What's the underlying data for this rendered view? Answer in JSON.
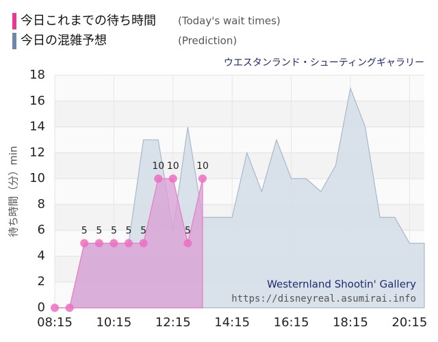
{
  "chart_data": {
    "type": "area",
    "subtitle": "ウエスタンランド・シューティングギャラリー",
    "y_label": "待ち時間（分）min",
    "watermark": [
      "Westernland Shootin' Gallery",
      "https://disneyreal.asumirai.info"
    ],
    "xlim": [
      "08:15",
      "20:45"
    ],
    "xticks": [
      "08:15",
      "10:15",
      "12:15",
      "14:15",
      "16:15",
      "18:15",
      "20:15"
    ],
    "ylim": [
      0,
      18
    ],
    "yticks": [
      0,
      2,
      4,
      6,
      8,
      10,
      12,
      14,
      16,
      18
    ],
    "grid": true,
    "series": [
      {
        "name": "今日の混雑予想",
        "legend_note": "(Prediction)",
        "color": "#6f86a8",
        "x": [
          "08:15",
          "08:45",
          "09:15",
          "09:45",
          "10:15",
          "10:45",
          "11:15",
          "11:45",
          "12:15",
          "12:45",
          "13:15",
          "13:45",
          "14:15",
          "14:45",
          "15:15",
          "15:45",
          "16:15",
          "16:45",
          "17:15",
          "17:45",
          "18:15",
          "18:45",
          "19:15",
          "19:45",
          "20:15",
          "20:45"
        ],
        "values": [
          0,
          0,
          5,
          5,
          5,
          5,
          13,
          13,
          6,
          14,
          7,
          7,
          7,
          12,
          9,
          13,
          10,
          10,
          9,
          11,
          17,
          14,
          7,
          7,
          5,
          5
        ]
      },
      {
        "name": "今日これまでの待ち時間",
        "legend_note": "(Today's wait times)",
        "color": "#e8388f",
        "x": [
          "08:15",
          "08:45",
          "09:15",
          "09:45",
          "10:15",
          "10:45",
          "11:15",
          "11:45",
          "12:15",
          "12:45",
          "13:15"
        ],
        "values": [
          0,
          0,
          5,
          5,
          5,
          5,
          5,
          10,
          10,
          5,
          10
        ]
      }
    ]
  }
}
